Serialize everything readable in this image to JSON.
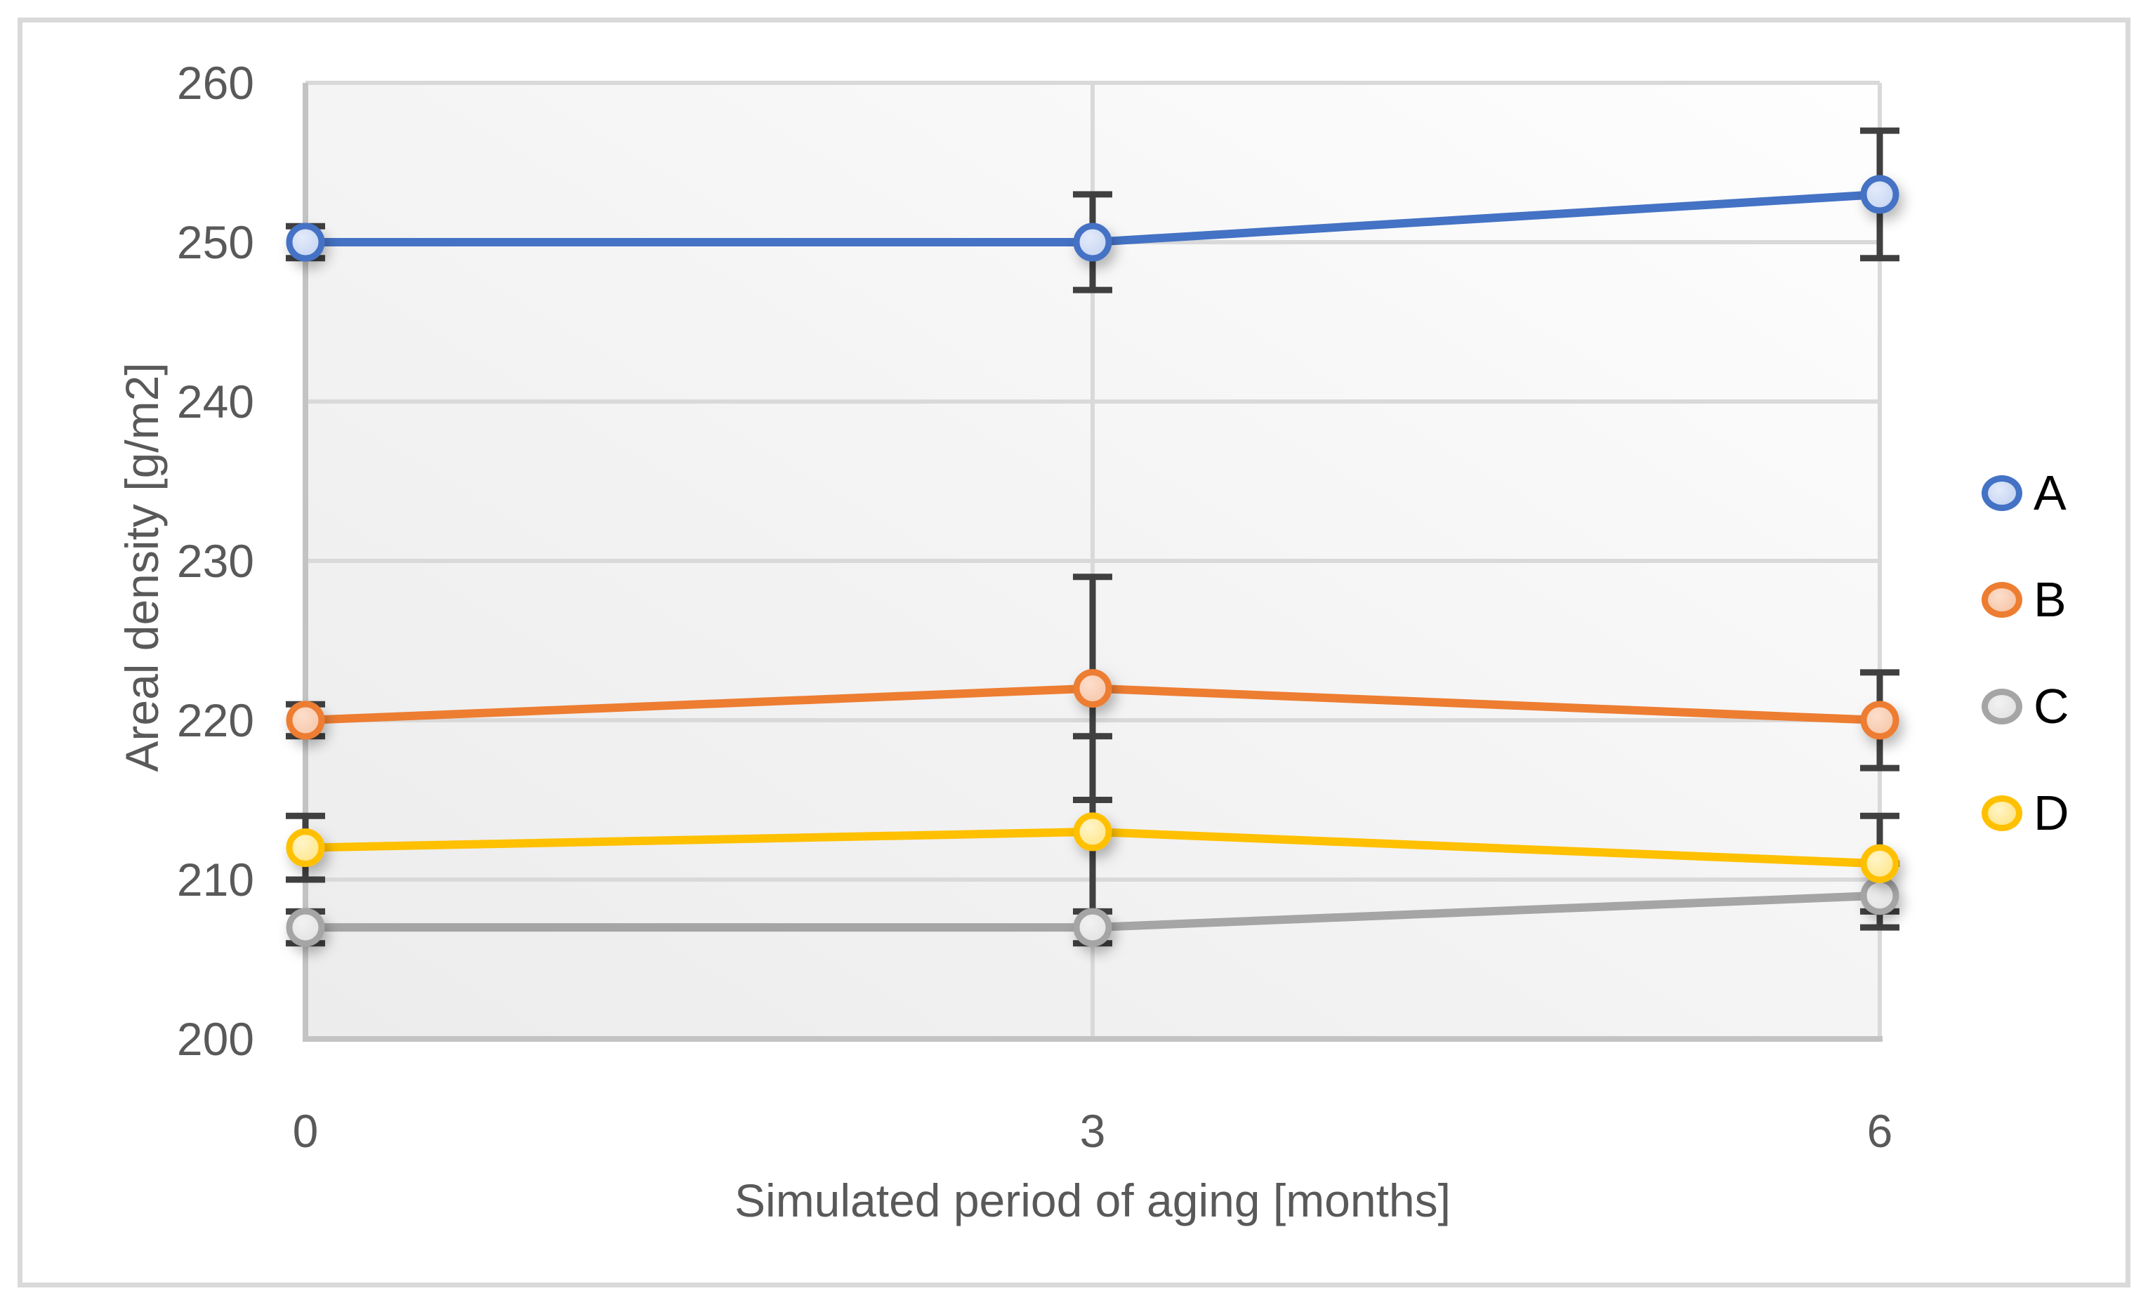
{
  "page": {
    "background": "#FFFFFF",
    "frame_border_color": "#D9D9D9"
  },
  "y_axis": {
    "title": "Areal density [g/m2]",
    "tick_values": [
      260,
      250,
      240,
      230,
      220,
      210,
      200
    ],
    "label_color": "#595959"
  },
  "x_axis": {
    "title": "Simulated period of aging [months]",
    "tick_values": [
      0,
      3,
      6
    ],
    "label_color": "#595959"
  },
  "legend": {
    "position": "right",
    "items": [
      "A",
      "B",
      "C",
      "D"
    ],
    "text_color": "#000000"
  },
  "chart_data": {
    "type": "line",
    "x": [
      0,
      3,
      6
    ],
    "xlabel": "Simulated period of aging [months]",
    "ylabel": "Areal density [g/m2]",
    "ylim": [
      200,
      260
    ],
    "y_tick_step": 10,
    "grid": true,
    "legend_position": "right",
    "gridline_color": "#D9D9D9",
    "axis_line_color": "#C3C3C3",
    "error_bar_color": "#404040",
    "series": [
      {
        "name": "A",
        "values": [
          250,
          250,
          253
        ],
        "errors": [
          1,
          3,
          4
        ],
        "color": "#4472C4",
        "fill_from": "#E3EBFA",
        "fill_to": "#BFCFF0"
      },
      {
        "name": "B",
        "values": [
          220,
          222,
          220
        ],
        "errors": [
          1,
          7,
          3
        ],
        "color": "#ED7D31",
        "fill_from": "#FCDECB",
        "fill_to": "#F5C0A0"
      },
      {
        "name": "C",
        "values": [
          207,
          207,
          209
        ],
        "errors": [
          1,
          1,
          2
        ],
        "color": "#A5A5A5",
        "fill_from": "#F2F2F2",
        "fill_to": "#DEDEDE"
      },
      {
        "name": "D",
        "values": [
          212,
          213,
          211
        ],
        "errors": [
          2,
          6,
          3
        ],
        "color": "#FFC000",
        "fill_from": "#FFF5C9",
        "fill_to": "#FFE177"
      }
    ]
  }
}
